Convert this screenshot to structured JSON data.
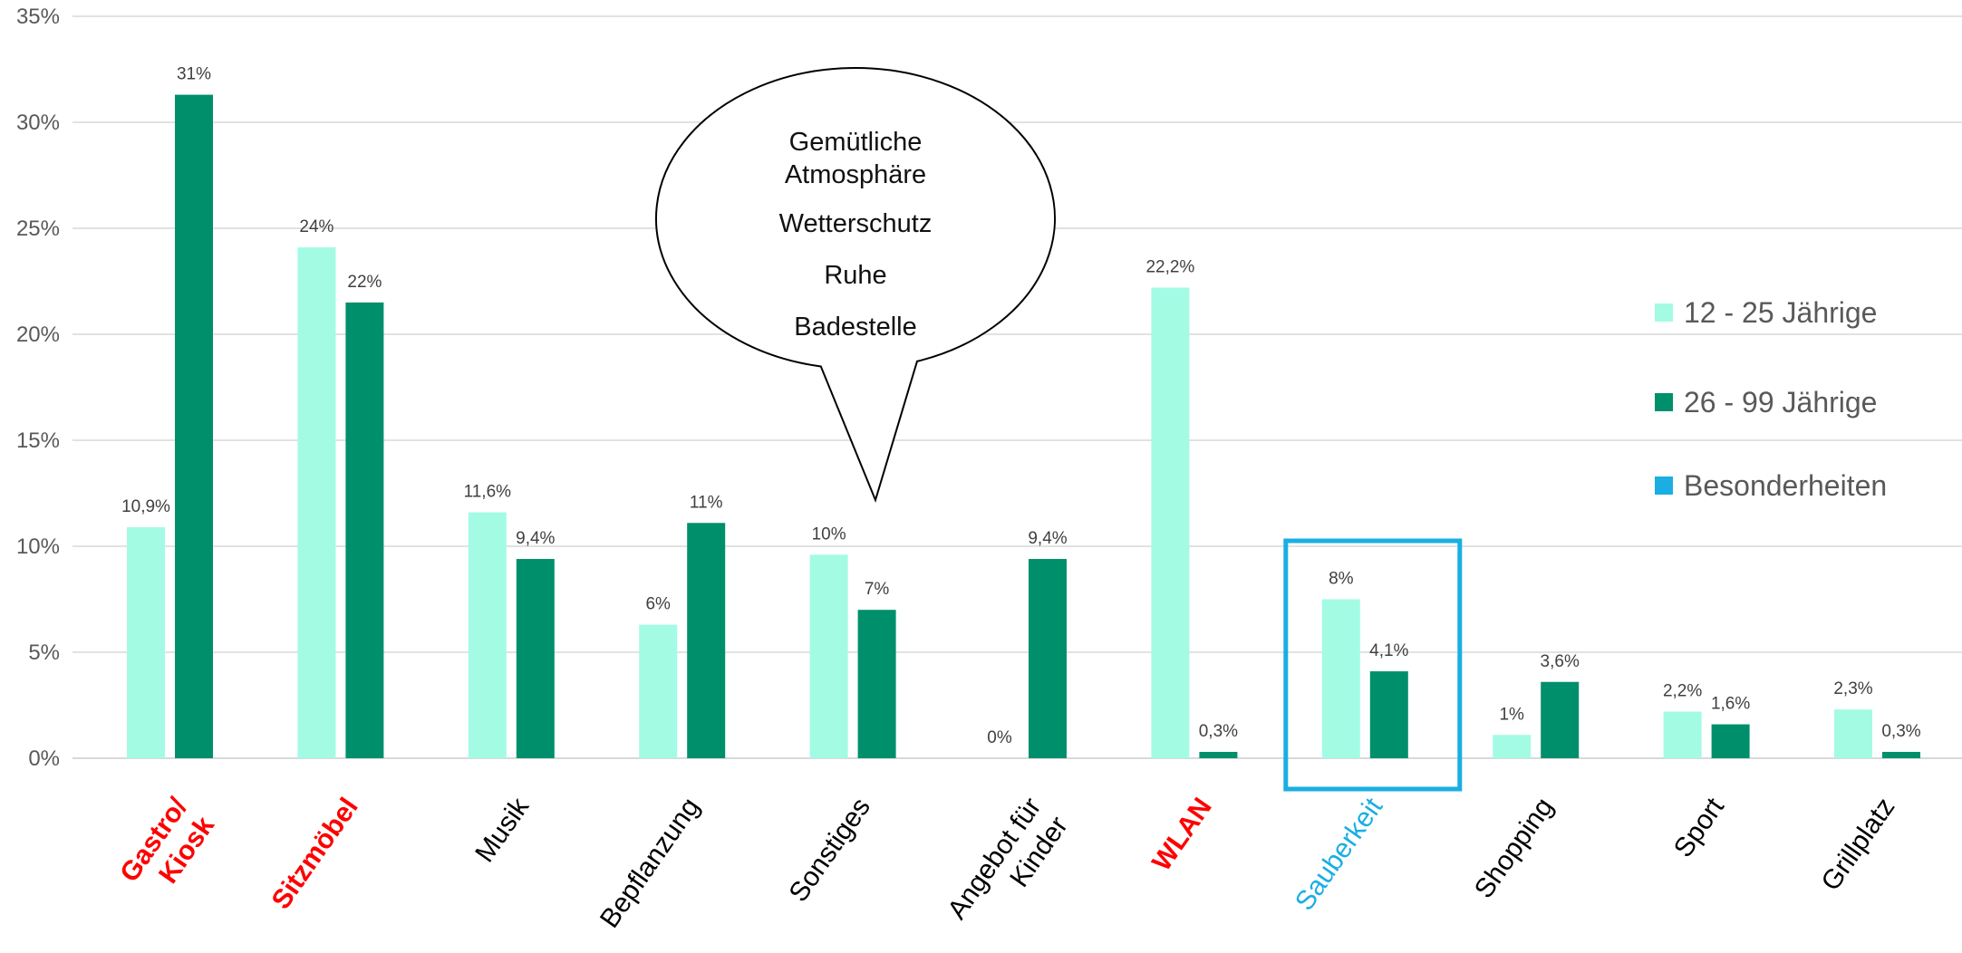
{
  "chart_data": {
    "type": "bar",
    "categories": [
      "Gastro/ Kiosk",
      "Sitzmöbel",
      "Musik",
      "Bepflanzung",
      "Sonstiges",
      "Angebot für Kinder",
      "WLAN",
      "Sauberkeit",
      "Shopping",
      "Sport",
      "Grillplatz"
    ],
    "category_lines": [
      [
        "Gastro/",
        "Kiosk"
      ],
      [
        "Sitzmöbel"
      ],
      [
        "Musik"
      ],
      [
        "Bepflanzung"
      ],
      [
        "Sonstiges"
      ],
      [
        "Angebot für",
        "Kinder"
      ],
      [
        "WLAN"
      ],
      [
        "Sauberkeit"
      ],
      [
        "Shopping"
      ],
      [
        "Sport"
      ],
      [
        "Grillplatz"
      ]
    ],
    "category_styles": [
      "red-bold",
      "red-bold",
      "normal",
      "normal",
      "normal",
      "normal",
      "red-bold",
      "highlight",
      "normal",
      "normal",
      "normal"
    ],
    "series": [
      {
        "name": "12 - 25 Jährige",
        "color": "#a3fbe4",
        "values": [
          10.9,
          24.1,
          11.6,
          6.3,
          9.6,
          0,
          22.2,
          7.5,
          1.1,
          2.2,
          2.3
        ],
        "labels": [
          "10,9%",
          "24%",
          "11,6%",
          "6%",
          "10%",
          "0%",
          "22,2%",
          "8%",
          "1%",
          "2,2%",
          "2,3%"
        ]
      },
      {
        "name": "26 - 99 Jährige",
        "color": "#008f6b",
        "values": [
          31.3,
          21.5,
          9.4,
          11.1,
          7.0,
          9.4,
          0.3,
          4.1,
          3.6,
          1.6,
          0.3
        ],
        "labels": [
          "31%",
          "22%",
          "9,4%",
          "11%",
          "7%",
          "9,4%",
          "0,3%",
          "4,1%",
          "3,6%",
          "1,6%",
          "0,3%"
        ]
      }
    ],
    "yticks": [
      "0%",
      "5%",
      "10%",
      "15%",
      "20%",
      "25%",
      "30%",
      "35%"
    ],
    "ylim": [
      0,
      35
    ],
    "grid": true,
    "legend": {
      "placement": "right",
      "entries": [
        {
          "label": "12 - 25 Jährige",
          "color": "#a3fbe4"
        },
        {
          "label": "26 - 99 Jährige",
          "color": "#008f6b"
        },
        {
          "label": "Besonderheiten",
          "color": "#1aaee3"
        }
      ]
    },
    "highlight_category": "Sauberkeit",
    "colors": {
      "red": "#ff0000",
      "highlight": "#1aaee3",
      "axis": "#d9d9d9",
      "text": "#000000"
    },
    "callout": {
      "lines": [
        "Gemütliche",
        "Atmosphäre",
        "Wetterschutz",
        "Ruhe",
        "Badestelle"
      ],
      "points_to": "Sonstiges"
    }
  }
}
